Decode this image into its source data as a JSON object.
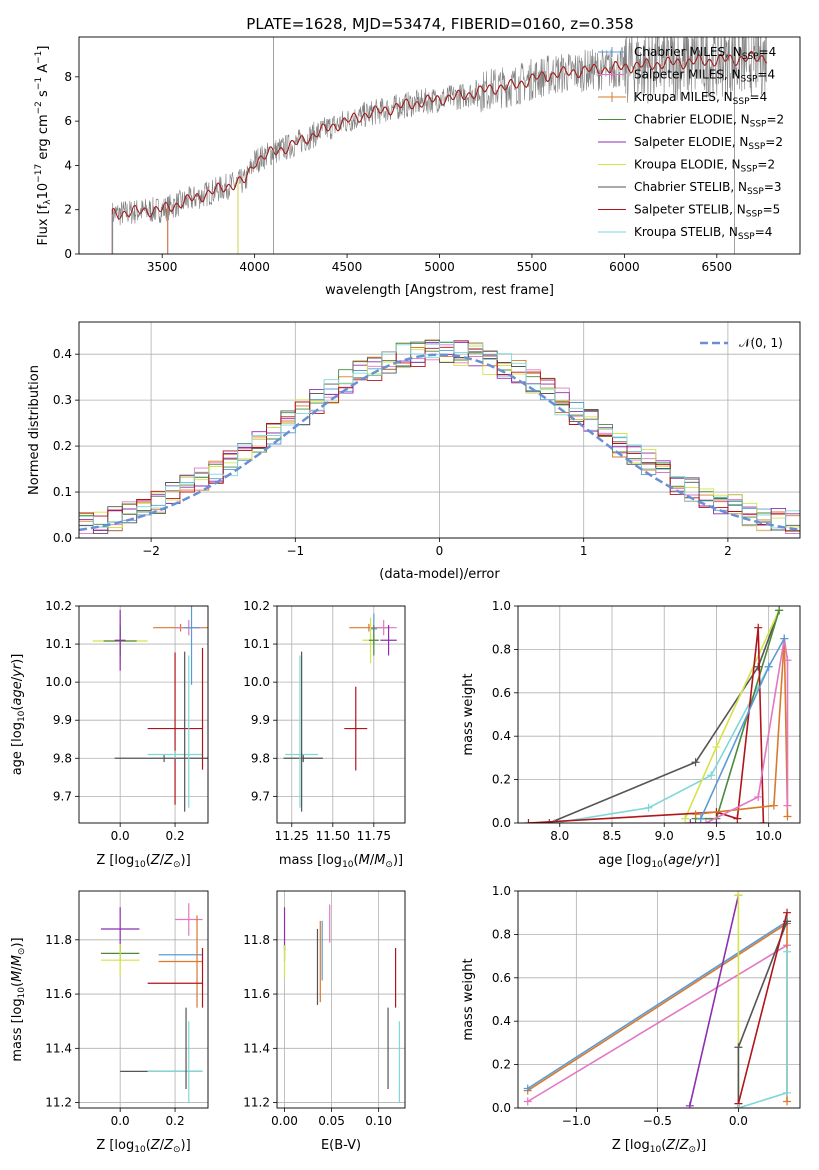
{
  "figure_title": "PLATE=1628, MJD=53474, FIBERID=0160, z=0.358",
  "colors": {
    "chabrier_miles": "#5b9bd5",
    "salpeter_miles": "#e377c2",
    "kroupa_miles": "#d97a2b",
    "chabrier_elodie": "#4a8a3a",
    "salpeter_elodie": "#8e2fb0",
    "kroupa_elodie": "#d4e34a",
    "chabrier_stelib": "#555555",
    "salpeter_stelib": "#b0151c",
    "kroupa_stelib": "#7fd7d7",
    "normal": "#6a8fd4",
    "grid": "#b0b0b0",
    "spectrum": "#808080"
  },
  "chart_data": [
    {
      "id": "spectrum",
      "type": "line",
      "title": "PLATE=1628, MJD=53474, FIBERID=0160, z=0.358",
      "xlabel": "wavelength [Angstrom, rest frame]",
      "ylabel": "Flux [f_λ 10^-17 erg cm^-2 s^-1 A^-1]",
      "xlim": [
        3050,
        6950
      ],
      "ylim": [
        0,
        9.8
      ],
      "xticks": [
        "3500",
        "4000",
        "4500",
        "5000",
        "5500",
        "6000",
        "6500"
      ],
      "yticks": [
        "0",
        "2",
        "4",
        "6",
        "8"
      ],
      "grid": false,
      "legend": "top-right",
      "legend_entries": [
        "Chabrier MILES, N_SSP=4",
        "Salpeter MILES, N_SSP=4",
        "Kroupa MILES, N_SSP=4",
        "Chabrier ELODIE, N_SSP=2",
        "Salpeter ELODIE, N_SSP=2",
        "Kroupa ELODIE, N_SSP=2",
        "Chabrier STELIB, N_SSP=3",
        "Salpeter STELIB, N_SSP=5",
        "Kroupa STELIB, N_SSP=4"
      ],
      "continuum": [
        [
          3230,
          1.8
        ],
        [
          3400,
          1.95
        ],
        [
          3500,
          2.0
        ],
        [
          3600,
          2.3
        ],
        [
          3700,
          2.6
        ],
        [
          3800,
          2.9
        ],
        [
          3900,
          3.2
        ],
        [
          3950,
          3.3
        ],
        [
          4000,
          4.2
        ],
        [
          4100,
          4.6
        ],
        [
          4200,
          4.9
        ],
        [
          4300,
          5.3
        ],
        [
          4400,
          5.7
        ],
        [
          4500,
          6.0
        ],
        [
          4600,
          6.3
        ],
        [
          4700,
          6.5
        ],
        [
          4800,
          6.7
        ],
        [
          4900,
          6.85
        ],
        [
          5000,
          7.0
        ],
        [
          5100,
          7.1
        ],
        [
          5200,
          7.3
        ],
        [
          5300,
          7.5
        ],
        [
          5400,
          7.6
        ],
        [
          5500,
          7.9
        ],
        [
          5600,
          8.1
        ],
        [
          5700,
          8.2
        ],
        [
          5800,
          8.3
        ],
        [
          5900,
          8.35
        ],
        [
          6000,
          8.45
        ],
        [
          6200,
          8.6
        ],
        [
          6400,
          8.7
        ],
        [
          6600,
          8.8
        ],
        [
          6770,
          8.9
        ]
      ]
    },
    {
      "id": "residuals",
      "type": "line",
      "xlabel": "(data-model)/error",
      "ylabel": "Normed distribution",
      "xlim": [
        -2.5,
        2.5
      ],
      "ylim": [
        0,
        0.47
      ],
      "xticks": [
        "−2",
        "−1",
        "0",
        "1",
        "2"
      ],
      "yticks": [
        "0.0",
        "0.1",
        "0.2",
        "0.3",
        "0.4"
      ],
      "grid": true,
      "legend": "top-right",
      "legend_entries": [
        "𝒩(0, 1)"
      ]
    },
    {
      "id": "age_vs_Z",
      "type": "scatter",
      "xlabel": "Z [log10(Z/Z⊙)]",
      "ylabel": "age [log10(age/yr)]",
      "xlim": [
        -0.15,
        0.32
      ],
      "ylim": [
        9.63,
        10.2
      ],
      "xticks": [
        "0.0",
        "0.2"
      ],
      "yticks": [
        "9.7",
        "9.8",
        "9.9",
        "10.0",
        "10.1",
        "10.2"
      ],
      "grid": true,
      "points": [
        {
          "x": 0.0,
          "y": 10.108,
          "xerr": 0.1,
          "yerr": 0.06,
          "c": "kroupa_elodie"
        },
        {
          "x": 0.0,
          "y": 10.108,
          "xerr": 0.06,
          "yerr": 0.04,
          "c": "chabrier_elodie"
        },
        {
          "x": 0.0,
          "y": 10.11,
          "xerr": 0.02,
          "yerr": 0.08,
          "c": "salpeter_elodie"
        },
        {
          "x": 0.22,
          "y": 10.143,
          "xerr": 0.1,
          "yerr": 0.01,
          "c": "kroupa_miles"
        },
        {
          "x": 0.25,
          "y": 10.143,
          "xerr": 0.05,
          "yerr": 0.02,
          "c": "salpeter_miles"
        },
        {
          "x": 0.26,
          "y": 10.143,
          "xerr": 0.03,
          "yerr": 0.15,
          "c": "chabrier_miles"
        },
        {
          "x": 0.2,
          "y": 9.878,
          "xerr": 0.1,
          "yerr": 0.2,
          "c": "salpeter_stelib"
        },
        {
          "x": 0.16,
          "y": 9.8,
          "xerr": 0.18,
          "yerr": 0.01,
          "c": "chabrier_stelib"
        },
        {
          "x": 0.2,
          "y": 9.81,
          "xerr": 0.1,
          "yerr": 0.01,
          "c": "kroupa_stelib"
        },
        {
          "x": 0.235,
          "y": 9.87,
          "xerr": 0.0,
          "yerr": 0.21,
          "c": "chabrier_stelib"
        },
        {
          "x": 0.25,
          "y": 9.87,
          "xerr": 0.0,
          "yerr": 0.2,
          "c": "kroupa_stelib"
        },
        {
          "x": 0.3,
          "y": 9.93,
          "xerr": 0.0,
          "yerr": 0.16,
          "c": "salpeter_stelib"
        }
      ]
    },
    {
      "id": "age_vs_mass",
      "type": "scatter",
      "xlabel": "mass [log10(M/M⊙)]",
      "ylabel": "",
      "xlim": [
        11.16,
        11.94
      ],
      "ylim": [
        9.63,
        10.2
      ],
      "xticks": [
        "11.25",
        "11.50",
        "11.75"
      ],
      "yticks": [
        "9.7",
        "9.8",
        "9.9",
        "10.0",
        "10.1",
        "10.2"
      ],
      "grid": true,
      "points": [
        {
          "x": 11.72,
          "y": 10.143,
          "xerr": 0.12,
          "yerr": 0.01,
          "c": "kroupa_miles"
        },
        {
          "x": 11.81,
          "y": 10.143,
          "xerr": 0.08,
          "yerr": 0.02,
          "c": "salpeter_miles"
        },
        {
          "x": 11.75,
          "y": 10.14,
          "xerr": 0.02,
          "yerr": 0.04,
          "c": "chabrier_miles"
        },
        {
          "x": 11.73,
          "y": 10.11,
          "xerr": 0.05,
          "yerr": 0.06,
          "c": "kroupa_elodie"
        },
        {
          "x": 11.75,
          "y": 10.11,
          "xerr": 0.03,
          "yerr": 0.04,
          "c": "chabrier_elodie"
        },
        {
          "x": 11.84,
          "y": 10.11,
          "xerr": 0.05,
          "yerr": 0.04,
          "c": "salpeter_elodie"
        },
        {
          "x": 11.64,
          "y": 9.878,
          "xerr": 0.07,
          "yerr": 0.11,
          "c": "salpeter_stelib"
        },
        {
          "x": 11.32,
          "y": 9.8,
          "xerr": 0.12,
          "yerr": 0.01,
          "c": "chabrier_stelib"
        },
        {
          "x": 11.31,
          "y": 9.81,
          "xerr": 0.1,
          "yerr": 0.01,
          "c": "kroupa_stelib"
        },
        {
          "x": 11.31,
          "y": 9.87,
          "xerr": 0.0,
          "yerr": 0.21,
          "c": "chabrier_stelib"
        },
        {
          "x": 11.3,
          "y": 9.87,
          "xerr": 0.0,
          "yerr": 0.2,
          "c": "kroupa_stelib"
        }
      ]
    },
    {
      "id": "weight_vs_age",
      "type": "line",
      "xlabel": "age [log10(age/yr)]",
      "ylabel": "mass weight",
      "xlim": [
        7.6,
        10.3
      ],
      "ylim": [
        0,
        1.0
      ],
      "xticks": [
        "8.0",
        "8.5",
        "9.0",
        "9.5",
        "10.0"
      ],
      "yticks": [
        "0.0",
        "0.2",
        "0.4",
        "0.6",
        "0.8",
        "1.0"
      ],
      "grid": true,
      "series": [
        {
          "c": "chabrier_stelib",
          "x": [
            7.9,
            9.3,
            9.9,
            10.1
          ],
          "y": [
            0.0,
            0.28,
            0.72,
            0.98
          ]
        },
        {
          "c": "kroupa_stelib",
          "x": [
            7.95,
            8.85,
            9.45,
            10.0
          ],
          "y": [
            0.0,
            0.07,
            0.22,
            0.72
          ]
        },
        {
          "c": "kroupa_elodie",
          "x": [
            9.2,
            9.5,
            10.1
          ],
          "y": [
            0.02,
            0.35,
            0.98
          ]
        },
        {
          "c": "chabrier_elodie",
          "x": [
            9.3,
            9.5,
            10.1
          ],
          "y": [
            0.02,
            0.02,
            0.98
          ]
        },
        {
          "c": "salpeter_stelib",
          "x": [
            7.7,
            9.5,
            9.7,
            9.9,
            9.95
          ],
          "y": [
            0.0,
            0.05,
            0.02,
            0.9,
            0.0
          ]
        },
        {
          "c": "kroupa_miles",
          "x": [
            9.3,
            10.05,
            10.15,
            10.18
          ],
          "y": [
            0.04,
            0.08,
            0.85,
            0.03
          ]
        },
        {
          "c": "salpeter_miles",
          "x": [
            9.4,
            9.9,
            10.15,
            10.18,
            10.18
          ],
          "y": [
            0.0,
            0.12,
            0.85,
            0.75,
            0.08
          ]
        },
        {
          "c": "chabrier_miles",
          "x": [
            9.35,
            10.0,
            10.15
          ],
          "y": [
            0.02,
            0.72,
            0.85
          ]
        },
        {
          "c": "salpeter_elodie",
          "x": [
            9.25,
            9.5
          ],
          "y": [
            0.0,
            0.0
          ]
        }
      ]
    },
    {
      "id": "mass_vs_Z",
      "type": "scatter",
      "xlabel": "Z [log10(Z/Z⊙)]",
      "ylabel": "mass [log10(M/M⊙)]",
      "xlim": [
        -0.15,
        0.32
      ],
      "ylim": [
        11.18,
        11.98
      ],
      "xticks": [
        "0.0",
        "0.2"
      ],
      "yticks": [
        "11.2",
        "11.4",
        "11.6",
        "11.8"
      ],
      "grid": true,
      "points": [
        {
          "x": 0.0,
          "y": 11.84,
          "xerr": 0.07,
          "yerr": 0.08,
          "c": "salpeter_elodie"
        },
        {
          "x": 0.0,
          "y": 11.75,
          "xerr": 0.07,
          "yerr": 0.03,
          "c": "chabrier_elodie"
        },
        {
          "x": 0.0,
          "y": 11.725,
          "xerr": 0.07,
          "yerr": 0.06,
          "c": "kroupa_elodie"
        },
        {
          "x": 0.25,
          "y": 11.875,
          "xerr": 0.05,
          "yerr": 0.06,
          "c": "salpeter_miles"
        },
        {
          "x": 0.22,
          "y": 11.745,
          "xerr": 0.08,
          "yerr": 0.0,
          "c": "chabrier_miles"
        },
        {
          "x": 0.22,
          "y": 11.72,
          "xerr": 0.08,
          "yerr": 0.0,
          "c": "kroupa_miles"
        },
        {
          "x": 0.28,
          "y": 11.72,
          "xerr": 0.0,
          "yerr": 0.17,
          "c": "kroupa_miles"
        },
        {
          "x": 0.3,
          "y": 11.66,
          "xerr": 0.0,
          "yerr": 0.11,
          "c": "salpeter_stelib"
        },
        {
          "x": 0.2,
          "y": 11.64,
          "xerr": 0.1,
          "yerr": 0.0,
          "c": "salpeter_stelib"
        },
        {
          "x": 0.15,
          "y": 11.315,
          "xerr": 0.15,
          "yerr": 0.0,
          "c": "chabrier_stelib"
        },
        {
          "x": 0.2,
          "y": 11.315,
          "xerr": 0.1,
          "yerr": 0.0,
          "c": "kroupa_stelib"
        },
        {
          "x": 0.24,
          "y": 11.4,
          "xerr": 0.0,
          "yerr": 0.15,
          "c": "chabrier_stelib"
        },
        {
          "x": 0.25,
          "y": 11.35,
          "xerr": 0.0,
          "yerr": 0.15,
          "c": "kroupa_stelib"
        }
      ]
    },
    {
      "id": "mass_vs_ebv",
      "type": "scatter",
      "xlabel": "E(B-V)",
      "ylabel": "",
      "xlim": [
        -0.008,
        0.128
      ],
      "ylim": [
        11.18,
        11.98
      ],
      "xticks": [
        "0.00",
        "0.05",
        "0.10"
      ],
      "yticks": [
        "11.2",
        "11.4",
        "11.6",
        "11.8"
      ],
      "grid": true,
      "points": [
        {
          "x": 0.0,
          "y": 11.84,
          "xerr": 0,
          "yerr": 0.08,
          "c": "salpeter_elodie"
        },
        {
          "x": 0.0,
          "y": 11.75,
          "xerr": 0,
          "yerr": 0.03,
          "c": "chabrier_elodie"
        },
        {
          "x": 0.0,
          "y": 11.72,
          "xerr": 0,
          "yerr": 0.06,
          "c": "kroupa_elodie"
        },
        {
          "x": 0.035,
          "y": 11.7,
          "xerr": 0,
          "yerr": 0.14,
          "c": "chabrier_stelib"
        },
        {
          "x": 0.038,
          "y": 11.72,
          "xerr": 0,
          "yerr": 0.15,
          "c": "kroupa_miles"
        },
        {
          "x": 0.04,
          "y": 11.76,
          "xerr": 0,
          "yerr": 0.11,
          "c": "chabrier_miles"
        },
        {
          "x": 0.048,
          "y": 11.86,
          "xerr": 0,
          "yerr": 0.07,
          "c": "salpeter_miles"
        },
        {
          "x": 0.11,
          "y": 11.4,
          "xerr": 0,
          "yerr": 0.15,
          "c": "chabrier_stelib"
        },
        {
          "x": 0.118,
          "y": 11.66,
          "xerr": 0,
          "yerr": 0.11,
          "c": "salpeter_stelib"
        },
        {
          "x": 0.122,
          "y": 11.35,
          "xerr": 0,
          "yerr": 0.15,
          "c": "kroupa_stelib"
        }
      ]
    },
    {
      "id": "weight_vs_Z",
      "type": "line",
      "xlabel": "Z [log10(Z/Z⊙)]",
      "ylabel": "mass weight",
      "xlim": [
        -1.36,
        0.38
      ],
      "ylim": [
        0,
        1.0
      ],
      "xticks": [
        "−1.0",
        "−0.5",
        "0.0"
      ],
      "yticks": [
        "0.0",
        "0.2",
        "0.4",
        "0.6",
        "0.8",
        "1.0"
      ],
      "grid": true,
      "series": [
        {
          "c": "salpeter_miles",
          "x": [
            -1.3,
            0.3
          ],
          "y": [
            0.03,
            0.75
          ]
        },
        {
          "c": "kroupa_miles",
          "x": [
            -1.3,
            0.3,
            0.3
          ],
          "y": [
            0.08,
            0.85,
            0.03
          ]
        },
        {
          "c": "chabrier_miles",
          "x": [
            -1.3,
            0.3
          ],
          "y": [
            0.09,
            0.86
          ]
        },
        {
          "c": "salpeter_elodie",
          "x": [
            -0.3,
            0.0
          ],
          "y": [
            0.01,
            0.98
          ]
        },
        {
          "c": "kroupa_elodie",
          "x": [
            0.0,
            0.0
          ],
          "y": [
            0.98,
            0.02
          ]
        },
        {
          "c": "chabrier_stelib",
          "x": [
            0.0,
            0.0,
            0.3
          ],
          "y": [
            0.0,
            0.28,
            0.86
          ]
        },
        {
          "c": "salpeter_stelib",
          "x": [
            0.0,
            0.0,
            0.3
          ],
          "y": [
            0.0,
            0.02,
            0.9
          ]
        },
        {
          "c": "kroupa_stelib",
          "x": [
            0.0,
            0.3,
            0.3
          ],
          "y": [
            0.0,
            0.07,
            0.72
          ]
        }
      ]
    }
  ]
}
